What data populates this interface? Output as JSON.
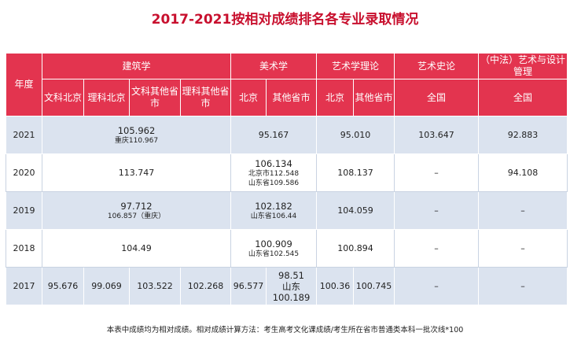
{
  "title": "2017-2021按相对成绩排名各专业录取情况",
  "header": {
    "year": "年度",
    "architecture": "建筑学",
    "arch_sub": [
      "文科北京",
      "理科北京",
      "文科其他省市",
      "理科其他省市"
    ],
    "fine_arts": "美术学",
    "fine_sub": [
      "北京",
      "其他省市"
    ],
    "art_theory": "艺术学理论",
    "theory_sub": [
      "北京",
      "其他省市"
    ],
    "art_history": "艺术史论",
    "art_history_sub": "全国",
    "design": "（中法）艺术与设计管理",
    "design_sub": "全国"
  },
  "rows": {
    "r2021": {
      "year": "2021",
      "arch_main": "105.962",
      "arch_sub": "重庆110.967",
      "fine": "95.167",
      "theory": "95.010",
      "history": "103.647",
      "design": "92.883"
    },
    "r2020": {
      "year": "2020",
      "arch_main": "113.747",
      "fine_main": "106.134",
      "fine_sub1": "北京市112.548",
      "fine_sub2": "山东省109.586",
      "theory": "108.137",
      "history": "–",
      "design": "94.108"
    },
    "r2019": {
      "year": "2019",
      "arch_main": "97.712",
      "arch_sub": "106.857（重庆）",
      "fine_main": "102.182",
      "fine_sub": "山东省106.44",
      "theory": "104.059",
      "history": "–",
      "design": "–"
    },
    "r2018": {
      "year": "2018",
      "arch_main": "104.49",
      "fine_main": "100.909",
      "fine_sub": "山东省102.545",
      "theory": "100.894",
      "history": "–",
      "design": "–"
    },
    "r2017": {
      "year": "2017",
      "arch": [
        "95.676",
        "99.069",
        "103.522",
        "102.268"
      ],
      "fine_bj": "96.577",
      "fine_other": [
        "98.51",
        "山东",
        "100.189"
      ],
      "theory_bj": "100.36",
      "theory_other": "100.745",
      "history": "–",
      "design": "–"
    }
  },
  "note": "本表中成绩均为相对成绩。相对成绩计算方法：考生高考文化课成绩/考生所在省市普通类本科一批次线*100"
}
